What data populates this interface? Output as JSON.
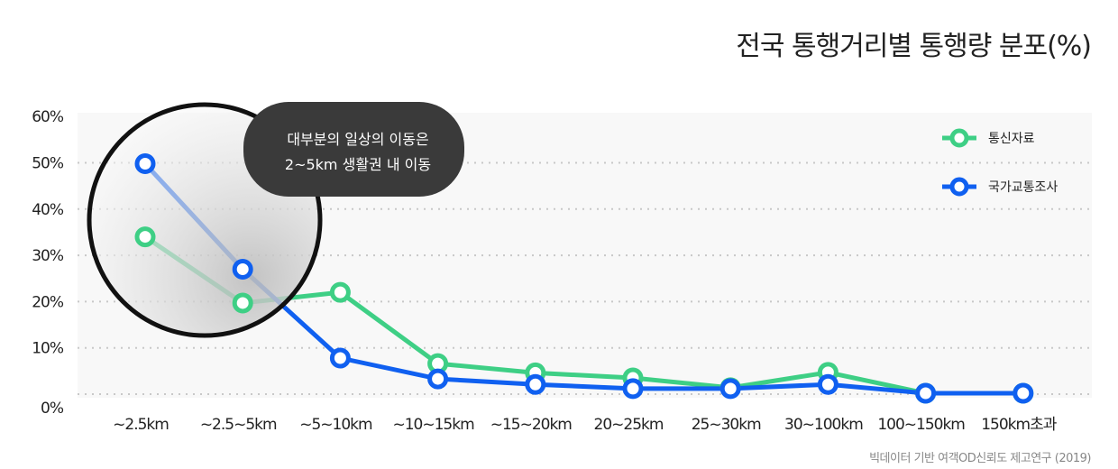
{
  "title": "전국 통행거리별 통행량 분포(%)",
  "source": "빅데이터 기반 여객OD신뢰도 제고연구 (2019)",
  "annotation": {
    "line1": "대부분의 일상의 이동은",
    "line2": "2~5km 생활권 내 이동"
  },
  "colors": {
    "green": "#3ecf85",
    "blue": "#1060f0",
    "tooltip": "#3a3a3a",
    "plot_bg": "#f8f8f8"
  },
  "chart_data": {
    "type": "line",
    "categories": [
      "~2.5km",
      "~2.5~5km",
      "~5~10km",
      "~10~15km",
      "~15~20km",
      "20~25km",
      "25~30km",
      "30~100km",
      "100~150km",
      "150km초과"
    ],
    "series": [
      {
        "name": "통신자료",
        "color": "#3ecf85",
        "values": [
          34,
          19.7,
          22,
          6.6,
          4.6,
          3.5,
          1.4,
          4.7,
          0.2,
          0.2
        ]
      },
      {
        "name": "국가교통조사",
        "color": "#1060f0",
        "values": [
          49.8,
          27,
          7.8,
          3.3,
          2.1,
          1.2,
          1.2,
          2.1,
          0.2,
          0.2
        ]
      }
    ],
    "yticks": [
      "0%",
      "10%",
      "20%",
      "30%",
      "40%",
      "50%",
      "60%"
    ],
    "ylim": [
      0,
      60
    ],
    "grid": true,
    "legend": "top-right"
  }
}
